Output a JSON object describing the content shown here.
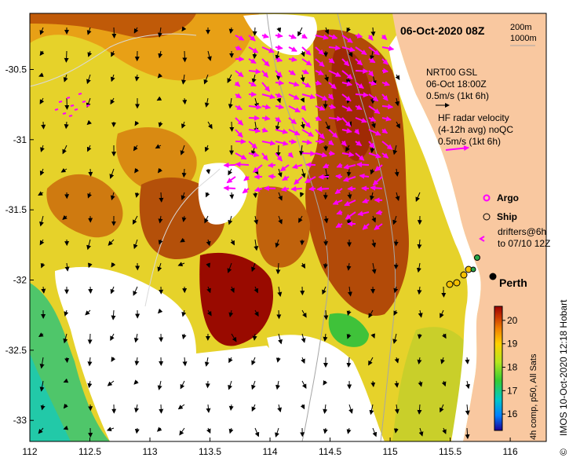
{
  "map": {
    "timestamp": "06-Oct-2020 08Z",
    "isobaths": [
      "200m",
      "1000m"
    ],
    "x_ticks": [
      "112",
      "112.5",
      "113",
      "113.5",
      "114",
      "114.5",
      "115",
      "115.5",
      "116"
    ],
    "y_ticks": [
      "-30.5",
      "-31",
      "-31.5",
      "-32",
      "-32.5",
      "-33"
    ],
    "lon_range": [
      112,
      116.3
    ],
    "lat_range": [
      -33.15,
      -30.1
    ],
    "nrt_label": [
      "NRT00 GSL",
      "06-Oct 18:00Z",
      "0.5m/s (1kt 6h)"
    ],
    "hf_label": [
      "HF radar velocity",
      "(4-12h avg) noQC",
      "0.5m/s (1kt 6h)"
    ],
    "legend": {
      "argo": "Argo",
      "ship": "Ship",
      "drifters": [
        "drifters@6h",
        "to 07/10 12Z"
      ]
    },
    "city": "Perth",
    "colorbar": {
      "ticks": [
        "20",
        "19",
        "18",
        "17",
        "16"
      ],
      "label": "4h comp, p50, All Sats",
      "range": [
        15.3,
        20.6
      ]
    },
    "source": "IMOS 10-Oct-2020 12:18 Hobart",
    "copyright": "©",
    "colors": {
      "land": "#f9c8a0",
      "hf_arrow": "#ff00ff",
      "argo": "#ff00ff",
      "ship": "#f5c000",
      "drifter": "#2aa84a",
      "isobath": "#a6a6a6"
    }
  }
}
